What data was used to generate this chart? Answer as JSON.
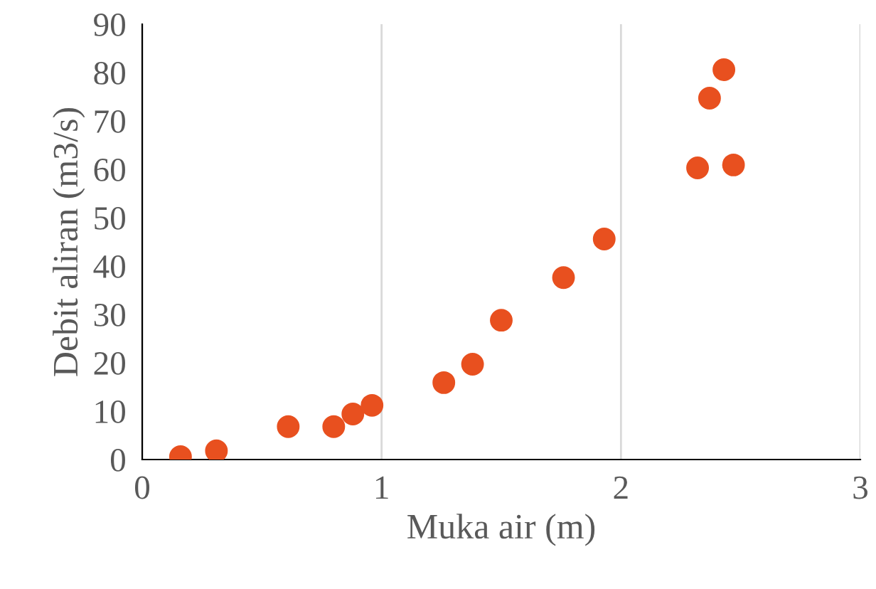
{
  "chart_data": {
    "type": "scatter",
    "xlabel": "Muka air (m)",
    "ylabel": "Debit aliran (m3/s)",
    "x": [
      0.16,
      0.31,
      0.61,
      0.8,
      0.88,
      0.96,
      1.26,
      1.38,
      1.5,
      1.76,
      1.93,
      2.32,
      2.37,
      2.43,
      2.47
    ],
    "series": [
      {
        "color": "#e8501f",
        "values": [
          0.6,
          1.8,
          6.8,
          6.8,
          9.4,
          11.2,
          15.9,
          19.7,
          28.8,
          37.6,
          45.6,
          60.3,
          74.7,
          80.6,
          60.9
        ]
      }
    ],
    "xlim": [
      0,
      3
    ],
    "xticks": [
      0,
      1,
      2,
      3
    ],
    "ylim": [
      0,
      90
    ],
    "yticks": [
      0,
      10,
      20,
      30,
      40,
      50,
      60,
      70,
      80,
      90
    ],
    "grid": "x",
    "marker": "circle",
    "legend": false
  }
}
